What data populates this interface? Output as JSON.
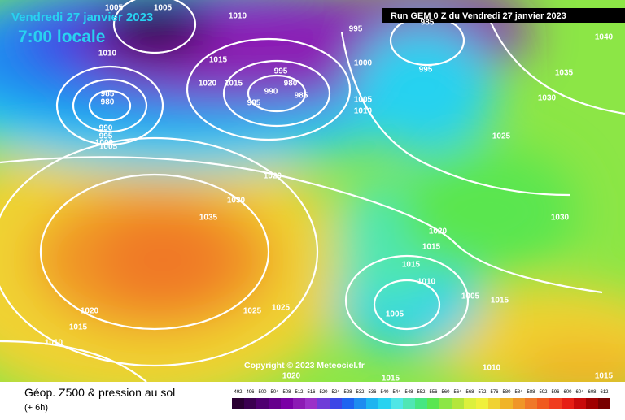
{
  "header": {
    "date": "Vendredi 27 janvier 2023",
    "time": "7:00 locale",
    "run": "Run GEM 0 Z du Vendredi 27 janvier 2023"
  },
  "copyright": "Copyright © 2023 Meteociel.fr",
  "footer": {
    "title": "Géop. Z500 & pression au sol",
    "lead": "(+ 6h)"
  },
  "isobar_labels": [
    1005,
    1005,
    1010,
    995,
    985,
    1040,
    1010,
    1015,
    1000,
    995,
    1035,
    1020,
    1015,
    995,
    980,
    990,
    985,
    985,
    980,
    985,
    1005,
    1010,
    1030,
    990,
    995,
    1000,
    1005,
    1025,
    1020,
    1030,
    1035,
    1030,
    1020,
    1015,
    1015,
    1010,
    1005,
    1015,
    1025,
    1025,
    1005,
    1020,
    1015,
    1010,
    1010,
    1015,
    1015,
    1020
  ],
  "legend": {
    "values": [
      492,
      496,
      500,
      504,
      508,
      512,
      516,
      520,
      524,
      528,
      532,
      536,
      540,
      544,
      548,
      552,
      556,
      560,
      564,
      568,
      572,
      576,
      580,
      584,
      588,
      592,
      596,
      600,
      604,
      608,
      612
    ],
    "colors": [
      "#2b0033",
      "#3c0050",
      "#500070",
      "#66008c",
      "#7a00a5",
      "#8c1ab4",
      "#9b30c8",
      "#6f3cd8",
      "#3c46e6",
      "#1e64f0",
      "#1e8cf0",
      "#1eb4f0",
      "#28d2f0",
      "#50e6e6",
      "#50e6b4",
      "#46e682",
      "#5ae650",
      "#8ce646",
      "#b4e63c",
      "#dcf03c",
      "#f0f03c",
      "#f0d232",
      "#f0b428",
      "#f09628",
      "#f07828",
      "#f05a1e",
      "#f03c1e",
      "#e61e14",
      "#c80a0a",
      "#a00000",
      "#780000"
    ]
  }
}
